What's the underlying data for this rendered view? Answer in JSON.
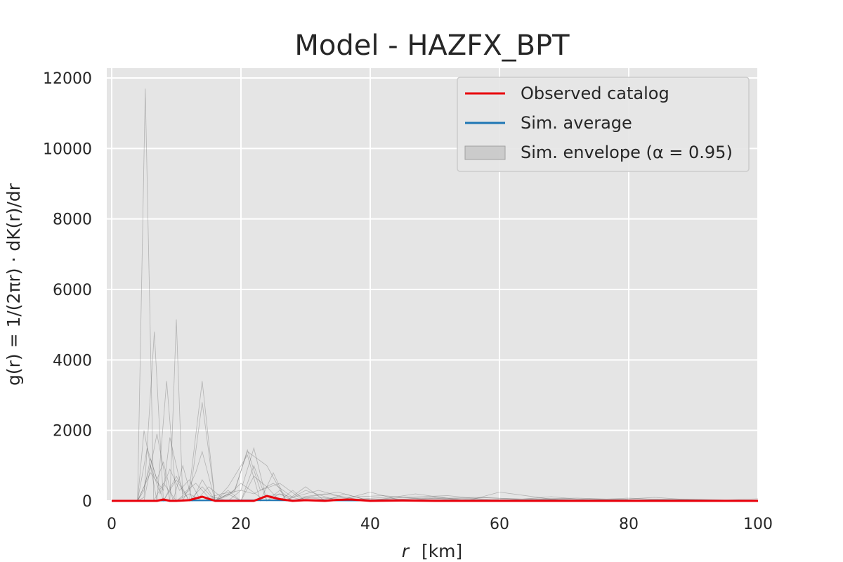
{
  "chart_data": {
    "type": "line",
    "title": "Model - HAZFX_BPT",
    "xlabel_var": "r",
    "xlabel_unit": "[km]",
    "ylabel": "g(r) = 1/(2πr) · dK(r)/dr",
    "xlim": [
      0,
      100
    ],
    "ylim": [
      0,
      12000
    ],
    "xticks": [
      0,
      20,
      40,
      60,
      80,
      100
    ],
    "yticks": [
      0,
      2000,
      4000,
      6000,
      8000,
      10000,
      12000
    ],
    "grid": true,
    "legend_placement": "top-right",
    "legend": [
      {
        "label": "Observed catalog",
        "kind": "line",
        "color": "#e8000b"
      },
      {
        "label": "Sim. average",
        "kind": "line",
        "color": "#1f77b4"
      },
      {
        "label": "Sim. envelope (α = 0.95)",
        "kind": "patch",
        "color": "#b0b0b0"
      }
    ],
    "series": [
      {
        "name": "Observed catalog",
        "color": "#e8000b",
        "x": [
          0,
          4,
          5,
          7,
          8,
          9,
          10,
          12,
          14,
          16,
          18,
          20,
          22,
          24,
          26,
          28,
          30,
          33,
          35,
          37,
          40,
          45,
          50,
          55,
          60,
          65,
          70,
          75,
          80,
          85,
          90,
          95,
          100
        ],
        "y": [
          0,
          0,
          0,
          0,
          40,
          0,
          0,
          20,
          120,
          0,
          0,
          0,
          0,
          140,
          50,
          0,
          20,
          0,
          30,
          40,
          0,
          10,
          0,
          0,
          0,
          0,
          0,
          0,
          0,
          0,
          0,
          0,
          0
        ]
      },
      {
        "name": "Sim. average",
        "color": "#1f77b4",
        "x": [
          0,
          10,
          20,
          30,
          40,
          50,
          60,
          70,
          80,
          90,
          100
        ],
        "y": [
          5,
          10,
          15,
          12,
          10,
          8,
          8,
          6,
          6,
          5,
          5
        ]
      }
    ],
    "simulations": [
      {
        "x": [
          0,
          4,
          5.2,
          6.5,
          8,
          10,
          12,
          14,
          16,
          18,
          20,
          22,
          24,
          26,
          28,
          30,
          35,
          40,
          50,
          60,
          70,
          80,
          90,
          100
        ],
        "y": [
          0,
          0,
          11700,
          0,
          500,
          0,
          200,
          0,
          100,
          0,
          300,
          1500,
          0,
          200,
          0,
          100,
          0,
          50,
          0,
          30,
          0,
          20,
          0,
          10
        ]
      },
      {
        "x": [
          0,
          4,
          5,
          6.6,
          8,
          10,
          12,
          14,
          16,
          18,
          20,
          22,
          24,
          26,
          28,
          30,
          35,
          40,
          50,
          60,
          70,
          80,
          90,
          100
        ],
        "y": [
          0,
          0,
          100,
          4800,
          0,
          600,
          0,
          2800,
          0,
          300,
          0,
          1000,
          0,
          300,
          0,
          100,
          250,
          0,
          100,
          0,
          60,
          0,
          30,
          0
        ]
      },
      {
        "x": [
          0,
          4,
          5,
          7,
          8.5,
          10,
          12,
          14,
          16,
          18,
          20,
          22,
          24,
          26,
          28,
          30,
          35,
          40,
          47,
          55,
          60,
          70,
          80,
          90,
          100
        ],
        "y": [
          0,
          0,
          2000,
          0,
          3400,
          0,
          300,
          3400,
          0,
          200,
          0,
          700,
          400,
          0,
          300,
          0,
          100,
          0,
          200,
          0,
          250,
          0,
          80,
          0,
          20
        ]
      },
      {
        "x": [
          0,
          4,
          5,
          7,
          9,
          10,
          11,
          13,
          14,
          16,
          18,
          21,
          23,
          25,
          27,
          30,
          33,
          36,
          40,
          45,
          52,
          60,
          68,
          75,
          84,
          92,
          100
        ],
        "y": [
          0,
          0,
          0,
          1900,
          0,
          5150,
          0,
          800,
          1400,
          0,
          400,
          1300,
          0,
          800,
          0,
          400,
          0,
          200,
          0,
          100,
          150,
          0,
          120,
          0,
          100,
          0,
          60
        ]
      },
      {
        "x": [
          0,
          4,
          5.5,
          7,
          8,
          9.5,
          11,
          12.5,
          14,
          16,
          19,
          21,
          24,
          27,
          30,
          35,
          40,
          45,
          50,
          55,
          65,
          75,
          85,
          95,
          100
        ],
        "y": [
          0,
          0,
          1500,
          600,
          1100,
          0,
          1000,
          0,
          600,
          0,
          300,
          1400,
          1000,
          0,
          300,
          0,
          250,
          0,
          80,
          0,
          60,
          0,
          40,
          0,
          20
        ]
      },
      {
        "x": [
          0,
          4,
          6,
          8,
          9,
          11,
          13,
          15,
          17,
          20,
          22,
          25,
          28,
          32,
          36,
          42,
          48,
          56,
          64,
          72,
          80,
          88,
          96,
          100
        ],
        "y": [
          0,
          0,
          800,
          300,
          1800,
          200,
          500,
          100,
          200,
          300,
          200,
          500,
          100,
          300,
          100,
          150,
          50,
          100,
          50,
          80,
          30,
          50,
          20,
          10
        ]
      },
      {
        "x": [
          0,
          4,
          5,
          6,
          7.5,
          9,
          10.5,
          12,
          13.5,
          15,
          17,
          19,
          21,
          23,
          26,
          29,
          33,
          38,
          44,
          51,
          58,
          66,
          74,
          82,
          90,
          100
        ],
        "y": [
          0,
          0,
          400,
          1000,
          200,
          900,
          300,
          600,
          100,
          400,
          100,
          250,
          1450,
          300,
          500,
          100,
          200,
          50,
          120,
          40,
          90,
          30,
          60,
          20,
          40,
          10
        ]
      },
      {
        "x": [
          0,
          4,
          5,
          6,
          8,
          10,
          12,
          14,
          16,
          18,
          20,
          23,
          26,
          29,
          32,
          37,
          43,
          50,
          58,
          67,
          76,
          85,
          94,
          100
        ],
        "y": [
          0,
          0,
          300,
          1200,
          0,
          700,
          0,
          400,
          0,
          150,
          500,
          100,
          200,
          50,
          100,
          30,
          60,
          20,
          40,
          10,
          30,
          10,
          20,
          5
        ]
      }
    ]
  }
}
